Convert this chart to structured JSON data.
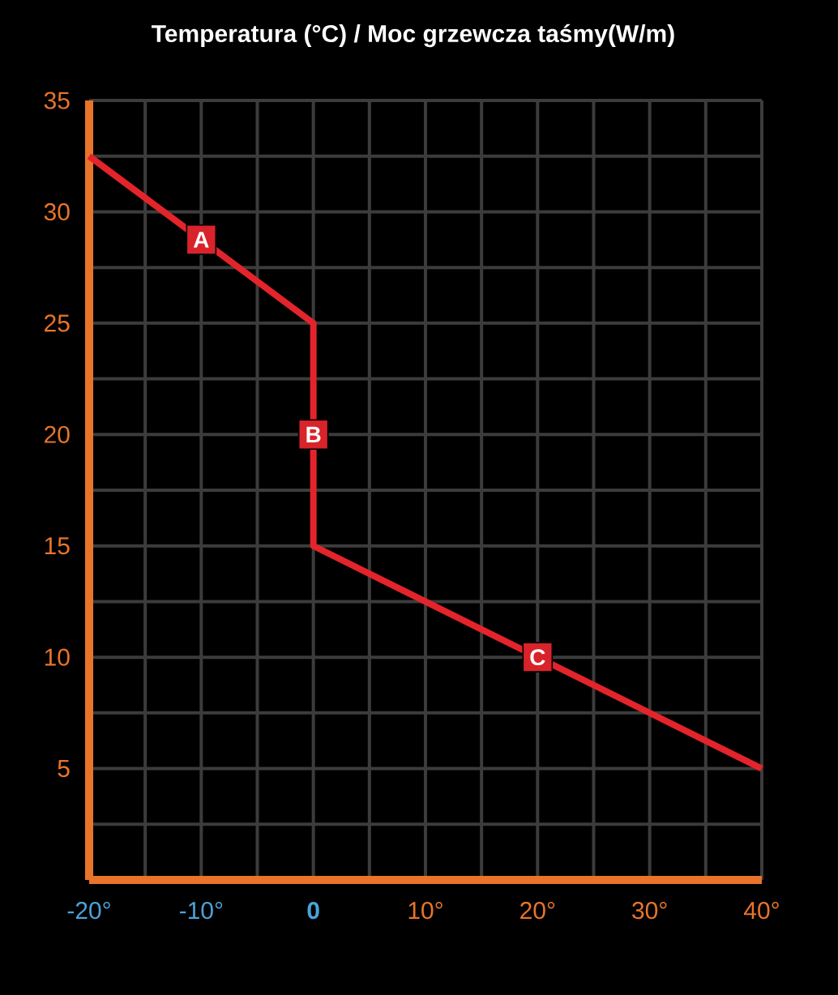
{
  "chart_data": {
    "type": "line",
    "title": "Temperatura (°C) / Moc grzewcza taśmy(W/m)",
    "x": [
      -20,
      0,
      0,
      40
    ],
    "series": [
      {
        "color": "#e3242b",
        "values": [
          32.5,
          25,
          15,
          5
        ]
      }
    ],
    "xlim": [
      -20,
      40
    ],
    "ylim": [
      0,
      35
    ],
    "xticks": [
      {
        "value": -20,
        "label": "-20°"
      },
      {
        "value": -10,
        "label": "-10°"
      },
      {
        "value": 0,
        "label": "0"
      },
      {
        "value": 10,
        "label": "10°"
      },
      {
        "value": 20,
        "label": "20°"
      },
      {
        "value": 30,
        "label": "30°"
      },
      {
        "value": 40,
        "label": "40°"
      }
    ],
    "yticks": [
      5,
      10,
      15,
      20,
      25,
      30,
      35
    ],
    "grid": true,
    "marker": "none",
    "line_style": "solid",
    "annotations": [
      {
        "text": "A",
        "x": -10,
        "y": 28.75
      },
      {
        "text": "B",
        "x": 0,
        "y": 20
      },
      {
        "text": "C",
        "x": 20,
        "y": 10
      }
    ]
  }
}
